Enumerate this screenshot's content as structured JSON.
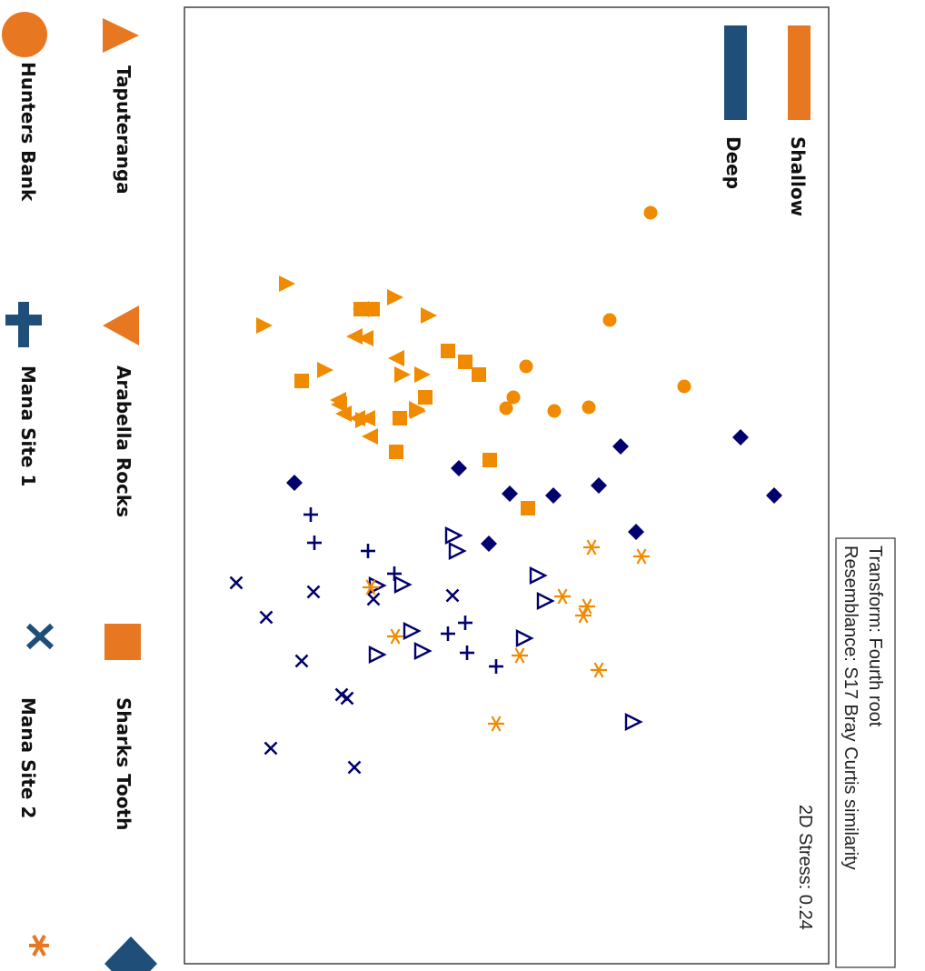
{
  "chart_data": {
    "type": "scatter",
    "title": "",
    "xlabel": "",
    "ylabel": "",
    "grid": false,
    "stress_label": "2D Stress: 0.24",
    "info_box": {
      "line1": "Transform: Fourth root",
      "line2": "Resemblance: S17 Bray Curtis similarity"
    },
    "depth_legend": [
      {
        "name": "Shallow",
        "color": "#E87722"
      },
      {
        "name": "Deep",
        "color": "#1F4E79"
      }
    ],
    "site_legend": [
      {
        "name": "Taputeranga",
        "symbol": "triangle-right"
      },
      {
        "name": "Arabella Rocks",
        "symbol": "triangle-left"
      },
      {
        "name": "Sharks Tooth",
        "symbol": "square"
      },
      {
        "name": "Hunters Bank",
        "symbol": "circle"
      },
      {
        "name": "Mana Site 1",
        "symbol": "plus"
      },
      {
        "name": "Mana Site 2",
        "symbol": "x"
      },
      {
        "name": "",
        "symbol": "diamond"
      },
      {
        "name": "",
        "symbol": "asterisk"
      }
    ],
    "series": [
      {
        "site": "Hunters Bank",
        "depth": "Shallow",
        "symbol": "circle",
        "color": "#F08A00",
        "points": [
          [
            234,
            716
          ],
          [
            352,
            671
          ],
          [
            403,
            579
          ],
          [
            425,
            753
          ],
          [
            437,
            565
          ],
          [
            449,
            557
          ],
          [
            452,
            610
          ],
          [
            448,
            648
          ]
        ]
      },
      {
        "site": "Taputeranga",
        "depth": "Shallow",
        "symbol": "triangle-right",
        "color": "#F08A00",
        "points": [
          [
            312,
            316
          ],
          [
            327,
            435
          ],
          [
            347,
            472
          ],
          [
            358,
            291
          ],
          [
            407,
            358
          ],
          [
            412,
            443
          ],
          [
            412,
            465
          ],
          [
            452,
            460
          ],
          [
            462,
            400
          ],
          [
            450,
            459
          ]
        ]
      },
      {
        "site": "Arabella Rocks",
        "depth": "Shallow",
        "symbol": "triangle-left",
        "color": "#F08A00",
        "points": [
          [
            340,
            397
          ],
          [
            370,
            390
          ],
          [
            372,
            402
          ],
          [
            394,
            436
          ],
          [
            445,
            373
          ],
          [
            455,
            378
          ],
          [
            460,
            393
          ],
          [
            460,
            404
          ],
          [
            480,
            407
          ],
          [
            440,
            372
          ]
        ]
      },
      {
        "site": "Sharks Tooth",
        "depth": "Shallow",
        "symbol": "square",
        "color": "#F08A00",
        "points": [
          [
            340,
            397
          ],
          [
            340,
            410
          ],
          [
            386,
            493
          ],
          [
            398,
            512
          ],
          [
            412,
            527
          ],
          [
            419,
            332
          ],
          [
            437,
            468
          ],
          [
            460,
            440
          ],
          [
            497,
            436
          ],
          [
            506,
            539
          ],
          [
            559,
            581
          ]
        ]
      },
      {
        "site": "Sharks Tooth",
        "depth": "Deep",
        "symbol": "diamond",
        "color": "#00006E",
        "points": [
          [
            481,
            815
          ],
          [
            491,
            683
          ],
          [
            515,
            505
          ],
          [
            531,
            324
          ],
          [
            534,
            659
          ],
          [
            543,
            561
          ],
          [
            545,
            609
          ],
          [
            545,
            852
          ],
          [
            585,
            700
          ],
          [
            598,
            538
          ]
        ]
      },
      {
        "site": "Mana Site 1",
        "depth": "Deep",
        "symbol": "plus",
        "color": "#00006E",
        "points": [
          [
            566,
            342
          ],
          [
            597,
            346
          ],
          [
            606,
            405
          ],
          [
            631,
            434
          ],
          [
            697,
            493
          ],
          [
            685,
            512
          ],
          [
            718,
            514
          ],
          [
            733,
            546
          ]
        ]
      },
      {
        "site": "Mana Site 2",
        "depth": "Deep",
        "symbol": "x",
        "color": "#00006E",
        "points": [
          [
            641,
            260
          ],
          [
            651,
            345
          ],
          [
            655,
            498
          ],
          [
            659,
            411
          ],
          [
            679,
            293
          ],
          [
            727,
            332
          ],
          [
            764,
            376
          ],
          [
            768,
            382
          ],
          [
            823,
            298
          ],
          [
            844,
            390
          ]
        ]
      },
      {
        "site": "Arabella Rocks",
        "depth": "Deep",
        "symbol": "triangle-right-open",
        "color": "#00006E",
        "points": [
          [
            589,
            499
          ],
          [
            606,
            503
          ],
          [
            633,
            592
          ],
          [
            643,
            443
          ],
          [
            644,
            415
          ],
          [
            661,
            600
          ],
          [
            694,
            453
          ],
          [
            702,
            577
          ],
          [
            716,
            465
          ],
          [
            720,
            415
          ],
          [
            794,
            697
          ]
        ]
      },
      {
        "site": "Mana Site 1",
        "depth": "Shallow",
        "symbol": "asterisk",
        "color": "#F08A00",
        "points": [
          [
            602,
            651
          ],
          [
            612,
            706
          ],
          [
            646,
            408
          ],
          [
            656,
            619
          ],
          [
            667,
            646
          ],
          [
            677,
            642
          ],
          [
            700,
            435
          ],
          [
            721,
            572
          ],
          [
            737,
            659
          ],
          [
            796,
            546
          ]
        ]
      }
    ]
  }
}
